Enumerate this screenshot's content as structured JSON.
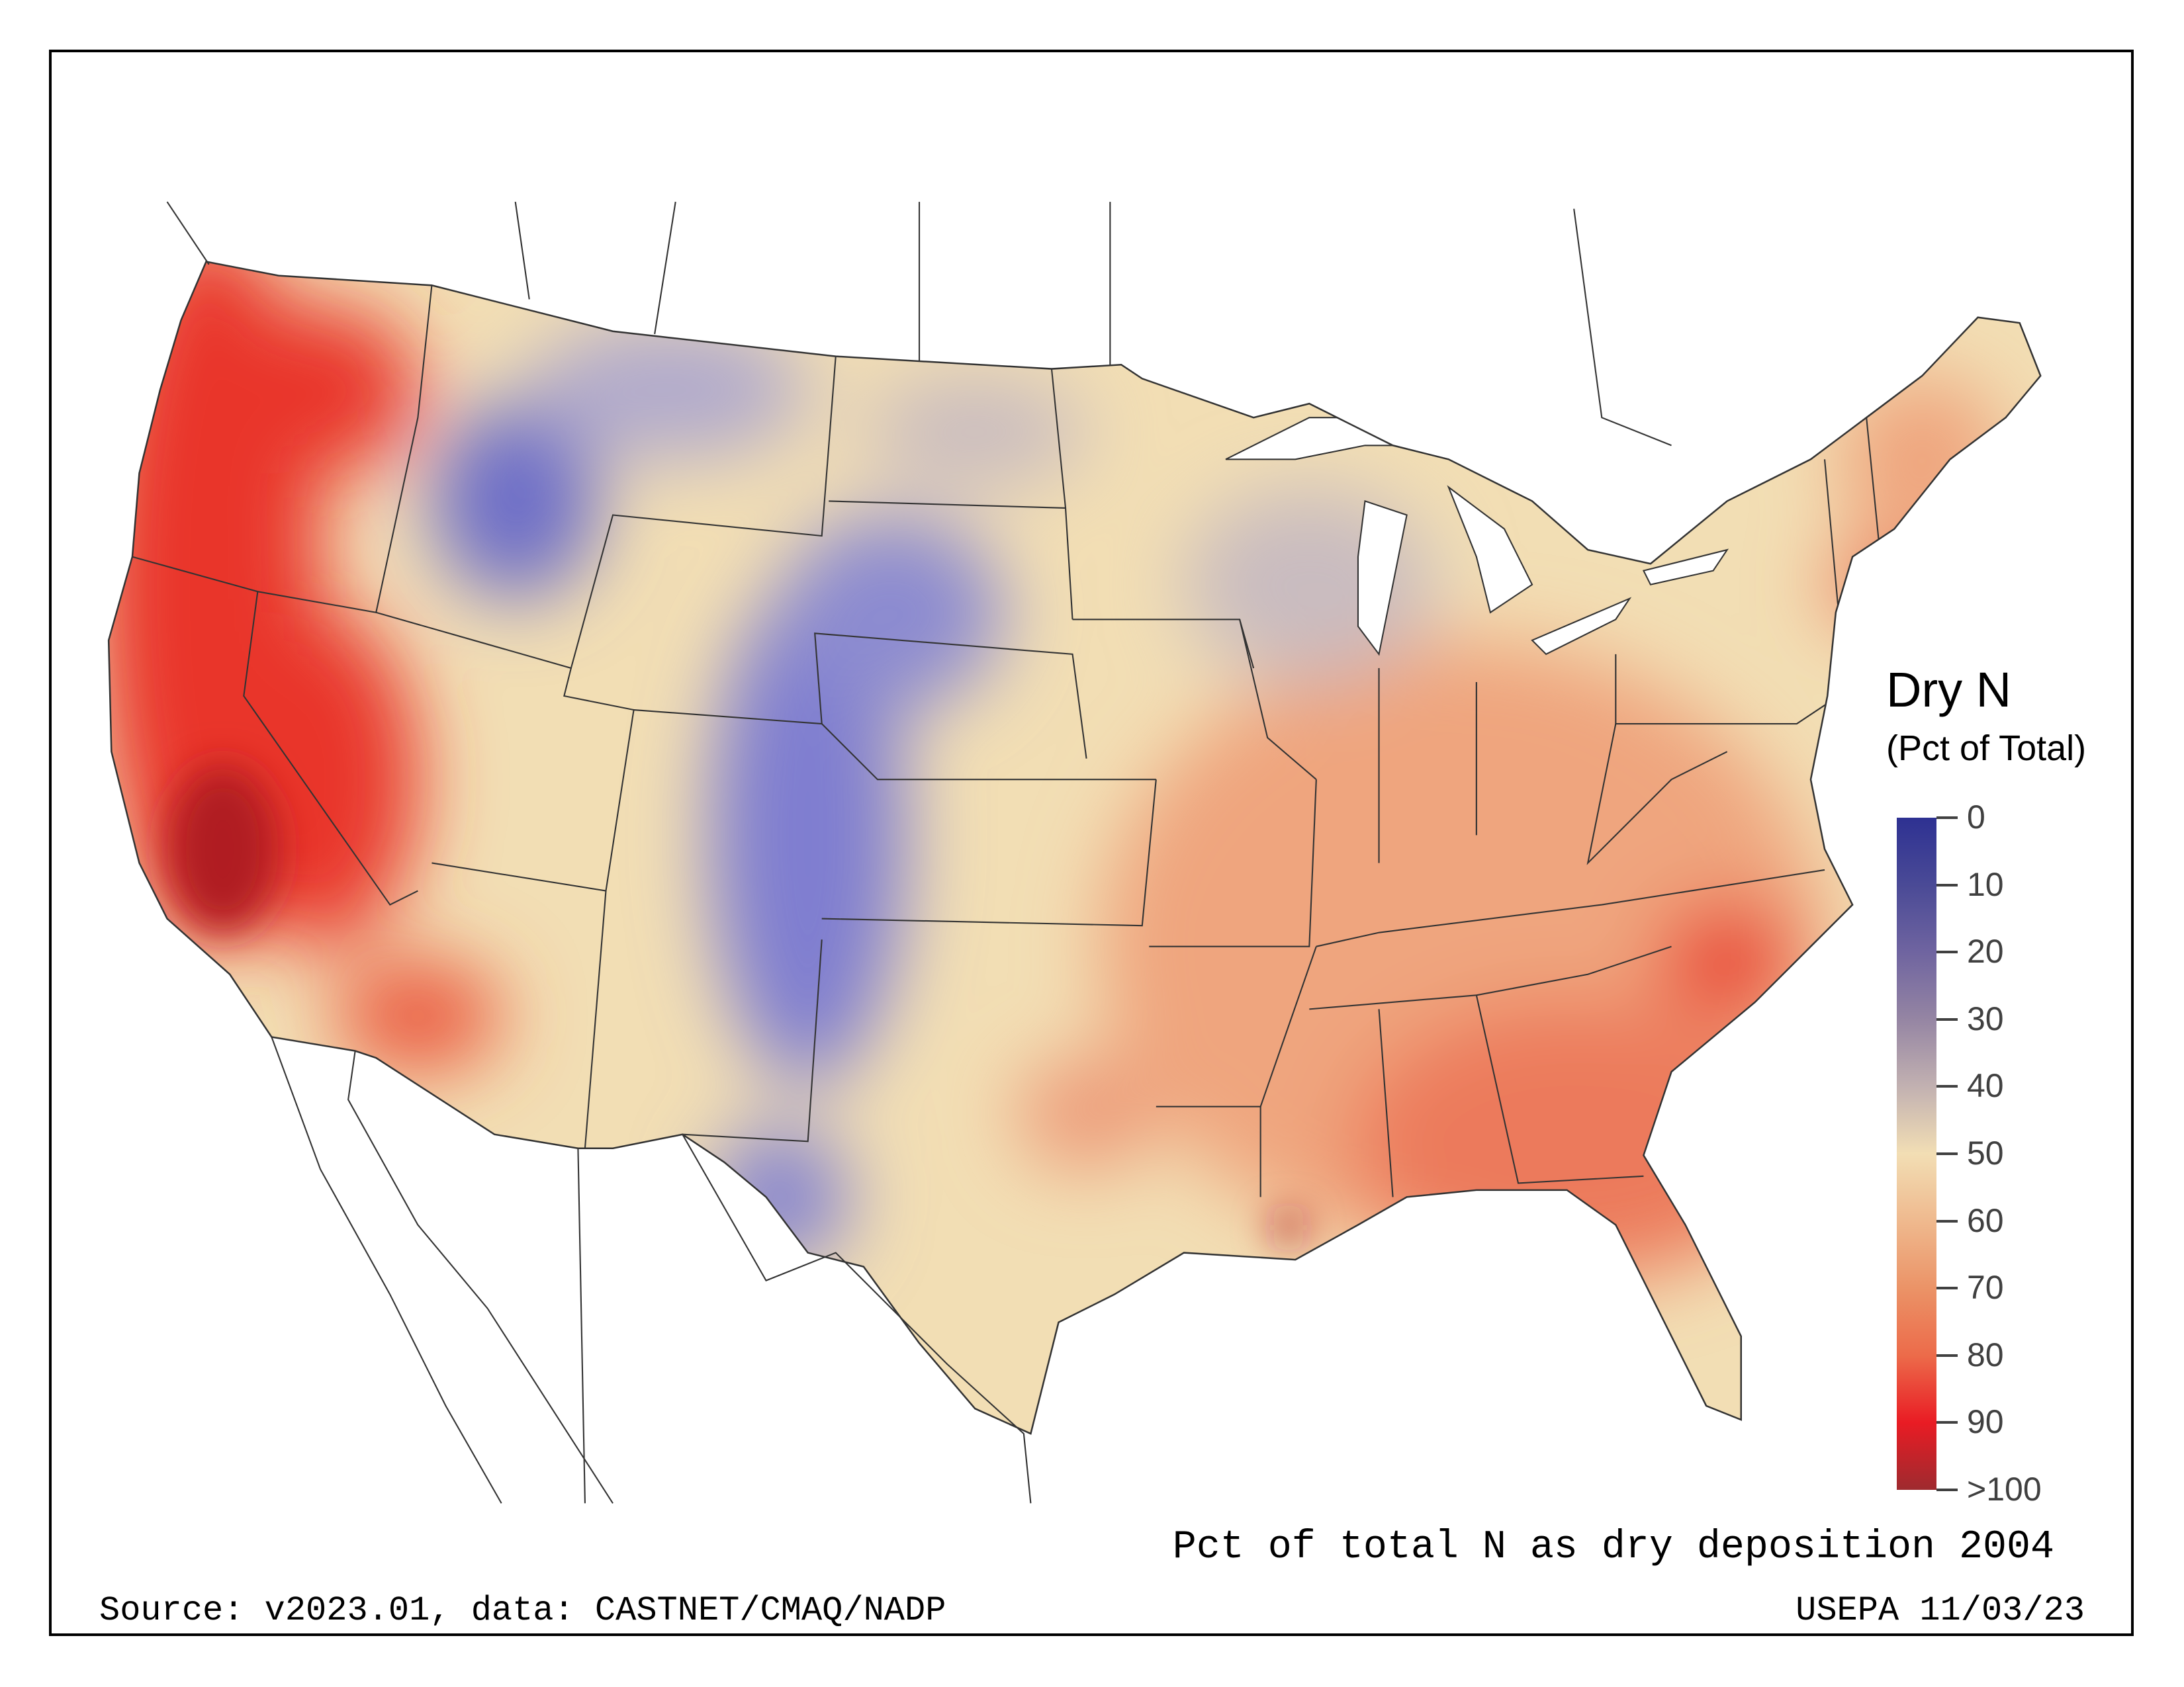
{
  "legend": {
    "title": "Dry N",
    "subtitle": "(Pct of Total)",
    "ticks": [
      "0",
      "10",
      "20",
      "30",
      "40",
      "50",
      "60",
      "70",
      "80",
      "90",
      ">100"
    ],
    "colors": [
      "#2e3192",
      "#4a4a96",
      "#6f64a0",
      "#9585a3",
      "#c2b1b1",
      "#f2deb4",
      "#efb98e",
      "#eb9367",
      "#ec6b4a",
      "#e91c24",
      "#9e2a2f"
    ]
  },
  "map_title": "Pct of total N as dry deposition 2004",
  "source": "Source: v2023.01, data: CASTNET/CMAQ/NADP",
  "credit": "USEPA 11/03/23"
}
